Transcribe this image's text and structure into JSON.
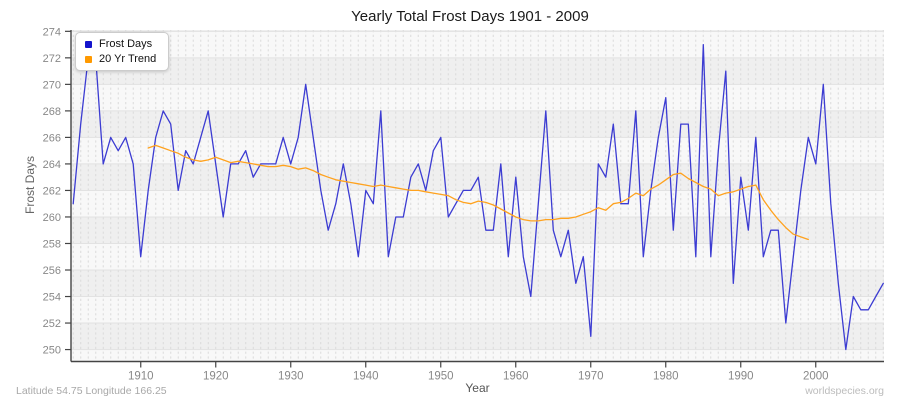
{
  "title": "Yearly Total Frost Days 1901 - 2009",
  "legend": {
    "items": [
      {
        "label": "Frost Days",
        "color": "#1414cc"
      },
      {
        "label": "20 Yr Trend",
        "color": "#ff9900"
      }
    ]
  },
  "footer": {
    "left": "Latitude 54.75 Longitude 166.25",
    "right": "worldspecies.org"
  },
  "chart_data": {
    "type": "line",
    "title": "Yearly Total Frost Days 1901 - 2009",
    "xlabel": "Year",
    "ylabel": "Frost Days",
    "xlim": [
      1900.7,
      2009.1
    ],
    "ylim": [
      249.1,
      274.1
    ],
    "yticks": [
      250,
      252,
      254,
      256,
      258,
      260,
      262,
      264,
      266,
      268,
      270,
      272,
      274
    ],
    "xticks": [
      1910,
      1920,
      1930,
      1940,
      1950,
      1960,
      1970,
      1980,
      1990,
      2000
    ],
    "grid": {
      "band_light": "#f8f8f8",
      "band_dark": "#efefef",
      "vline": "#dadada",
      "hline": "#e2e2e2",
      "axis_color": "#444",
      "tick_label_color": "#888"
    },
    "legend_position": "top-left",
    "series": [
      {
        "name": "Frost Days",
        "color": "#3c3cd2",
        "start_year": 1901,
        "values": [
          261,
          267,
          272,
          272,
          264,
          266,
          265,
          266,
          264,
          257,
          262,
          266,
          268,
          267,
          262,
          265,
          264,
          266,
          268,
          264,
          260,
          264,
          264,
          265,
          263,
          264,
          264,
          264,
          266,
          264,
          266,
          270,
          266,
          262,
          259,
          261,
          264,
          261,
          257,
          262,
          261,
          268,
          257,
          260,
          260,
          263,
          264,
          262,
          265,
          266,
          260,
          261,
          262,
          262,
          263,
          259,
          259,
          264,
          257,
          263,
          257,
          254,
          261,
          268,
          259,
          257,
          259,
          255,
          257,
          251,
          264,
          263,
          267,
          261,
          261,
          268,
          257,
          262,
          266,
          269,
          259,
          267,
          267,
          257,
          273,
          257,
          265,
          271,
          255,
          263,
          259,
          266,
          257,
          259,
          259,
          252,
          257,
          262,
          266,
          264,
          270,
          261,
          255,
          250,
          254,
          253,
          253,
          254,
          255
        ]
      },
      {
        "name": "20 Yr Trend",
        "color": "#ffa21e",
        "start_year": 1911,
        "values": [
          265.2,
          265.4,
          265.2,
          265.0,
          264.8,
          264.5,
          264.3,
          264.2,
          264.3,
          264.5,
          264.3,
          264.1,
          264.2,
          264.1,
          264.0,
          263.9,
          263.8,
          263.8,
          263.9,
          263.8,
          263.6,
          263.7,
          263.5,
          263.2,
          263.0,
          262.8,
          262.7,
          262.6,
          262.5,
          262.4,
          262.3,
          262.4,
          262.3,
          262.2,
          262.1,
          262.0,
          262.0,
          261.9,
          261.8,
          261.7,
          261.6,
          261.3,
          261.1,
          261.0,
          261.2,
          261.1,
          260.9,
          260.6,
          260.3,
          260.0,
          259.8,
          259.7,
          259.7,
          259.8,
          259.8,
          259.9,
          259.9,
          260.0,
          260.2,
          260.4,
          260.7,
          260.5,
          261.0,
          261.1,
          261.4,
          261.8,
          261.6,
          262.1,
          262.4,
          262.8,
          263.2,
          263.3,
          262.9,
          262.6,
          262.3,
          262.1,
          261.6,
          261.8,
          261.9,
          262.1,
          262.3,
          262.4,
          261.3,
          260.5,
          259.8,
          259.2,
          258.7,
          258.5,
          258.3
        ]
      }
    ]
  }
}
